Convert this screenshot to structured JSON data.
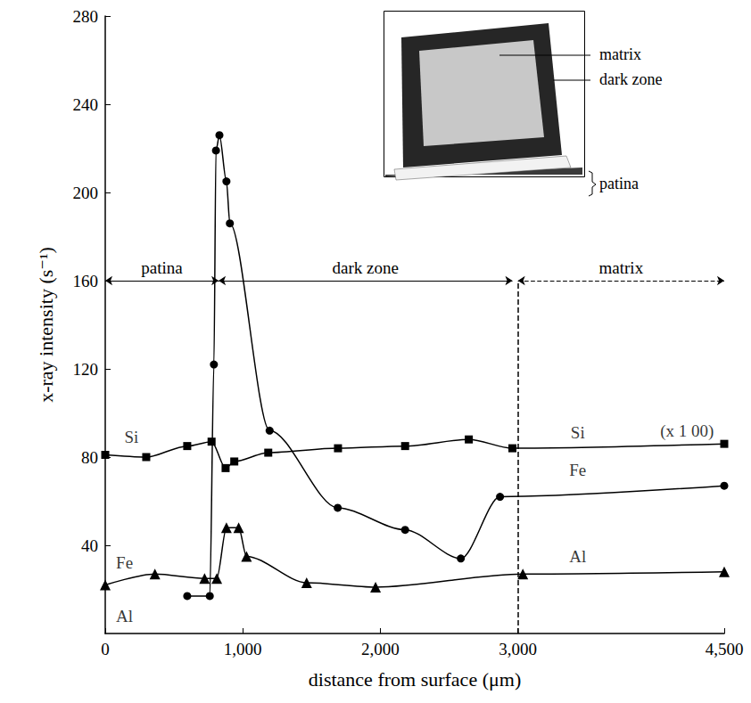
{
  "chart_data": {
    "type": "line",
    "x_label": "distance from surface (μm)",
    "y_label": "x-ray intensity (s⁻¹)",
    "xlim": [
      0,
      4500
    ],
    "xticks": [
      0,
      1000,
      2000,
      3000,
      4500
    ],
    "ylim": [
      0,
      280
    ],
    "yticks": [
      40,
      80,
      120,
      160,
      200,
      240,
      280
    ],
    "grid": false,
    "series": [
      {
        "name": "Si",
        "color": "#000000",
        "marker": "square",
        "line_style": "solid",
        "x": [
          0,
          298,
          596,
          773,
          875,
          938,
          1185,
          1692,
          2180,
          2643,
          2960,
          4500
        ],
        "values": [
          81,
          80,
          85,
          87,
          75,
          78,
          82,
          84,
          85,
          88,
          84,
          86
        ]
      },
      {
        "name": "Fe",
        "color": "#000000",
        "marker": "circle",
        "line_style": "solid",
        "x": [
          596,
          760,
          790,
          805,
          830,
          881,
          906,
          1195,
          1690,
          2180,
          2585,
          2870,
          4500
        ],
        "values": [
          17,
          17,
          122,
          219,
          226,
          205,
          186,
          92,
          57,
          47,
          34,
          62,
          67
        ]
      },
      {
        "name": "Al",
        "color": "#000000",
        "marker": "triangle",
        "line_style": "solid",
        "x": [
          0,
          361,
          722,
          811,
          881,
          970,
          1027,
          1464,
          1965,
          3036,
          4500
        ],
        "values": [
          22,
          27,
          25,
          25,
          48,
          48,
          35,
          23,
          21,
          27,
          28
        ]
      }
    ],
    "annotations": [
      {
        "text": "Si",
        "x": 190,
        "y": 89
      },
      {
        "text": "Si",
        "x": 3435,
        "y": 91
      },
      {
        "text": "(x 1 00)",
        "x": 4230,
        "y": 92
      },
      {
        "text": "Fe",
        "x": 3435,
        "y": 74
      },
      {
        "text": "Al",
        "x": 3435,
        "y": 35
      },
      {
        "text": "Fe",
        "x": 140,
        "y": 32
      },
      {
        "text": "Al",
        "x": 140,
        "y": 8
      }
    ],
    "zone_y": 160,
    "zones": [
      {
        "label": "patina",
        "from": 0,
        "to": 824,
        "line_style": "solid"
      },
      {
        "label": "dark zone",
        "from": 824,
        "to": 2960,
        "line_style": "solid"
      },
      {
        "label": "matrix",
        "from": 3000,
        "to": 4500,
        "line_style": "dashed"
      }
    ],
    "divider_x": 3000,
    "inset": {
      "labels": [
        "matrix",
        "dark zone",
        "patina"
      ]
    }
  }
}
